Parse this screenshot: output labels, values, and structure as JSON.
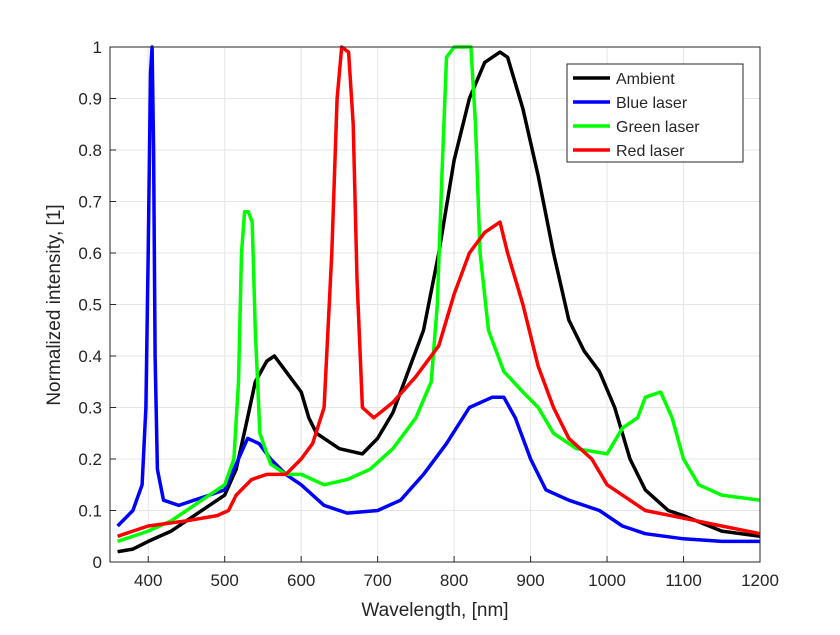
{
  "chart_data": {
    "type": "line",
    "title": "",
    "xlabel": "Wavelength, [nm]",
    "ylabel": "Normalized intensity, [1]",
    "xlim": [
      350,
      1200
    ],
    "ylim": [
      0,
      1
    ],
    "xticks": [
      400,
      500,
      600,
      700,
      800,
      900,
      1000,
      1100,
      1200
    ],
    "yticks": [
      0,
      0.1,
      0.2,
      0.3,
      0.4,
      0.5,
      0.6,
      0.7,
      0.8,
      0.9,
      1
    ],
    "ytick_labels": [
      "0",
      "0.1",
      "0.2",
      "0.3",
      "0.4",
      "0.5",
      "0.6",
      "0.7",
      "0.8",
      "0.9",
      "1"
    ],
    "grid": true,
    "legend_position": "top-right",
    "series": [
      {
        "name": "Ambient",
        "color": "#000000",
        "points": [
          [
            360,
            0.02
          ],
          [
            380,
            0.025
          ],
          [
            400,
            0.04
          ],
          [
            430,
            0.06
          ],
          [
            450,
            0.08
          ],
          [
            480,
            0.11
          ],
          [
            500,
            0.13
          ],
          [
            515,
            0.18
          ],
          [
            530,
            0.28
          ],
          [
            540,
            0.35
          ],
          [
            555,
            0.39
          ],
          [
            565,
            0.4
          ],
          [
            580,
            0.37
          ],
          [
            600,
            0.33
          ],
          [
            610,
            0.28
          ],
          [
            620,
            0.25
          ],
          [
            650,
            0.22
          ],
          [
            680,
            0.21
          ],
          [
            700,
            0.24
          ],
          [
            720,
            0.29
          ],
          [
            740,
            0.37
          ],
          [
            760,
            0.45
          ],
          [
            780,
            0.6
          ],
          [
            800,
            0.78
          ],
          [
            820,
            0.9
          ],
          [
            840,
            0.97
          ],
          [
            860,
            0.99
          ],
          [
            870,
            0.98
          ],
          [
            890,
            0.88
          ],
          [
            910,
            0.75
          ],
          [
            930,
            0.6
          ],
          [
            950,
            0.47
          ],
          [
            970,
            0.41
          ],
          [
            990,
            0.37
          ],
          [
            1010,
            0.3
          ],
          [
            1030,
            0.2
          ],
          [
            1050,
            0.14
          ],
          [
            1080,
            0.1
          ],
          [
            1100,
            0.09
          ],
          [
            1150,
            0.06
          ],
          [
            1200,
            0.05
          ]
        ]
      },
      {
        "name": "Blue laser",
        "color": "#0000ff",
        "points": [
          [
            360,
            0.07
          ],
          [
            380,
            0.1
          ],
          [
            392,
            0.15
          ],
          [
            397,
            0.3
          ],
          [
            400,
            0.6
          ],
          [
            403,
            0.95
          ],
          [
            405,
            1.0
          ],
          [
            407,
            0.8
          ],
          [
            409,
            0.4
          ],
          [
            412,
            0.18
          ],
          [
            420,
            0.12
          ],
          [
            440,
            0.11
          ],
          [
            460,
            0.12
          ],
          [
            480,
            0.13
          ],
          [
            500,
            0.14
          ],
          [
            515,
            0.19
          ],
          [
            530,
            0.24
          ],
          [
            545,
            0.23
          ],
          [
            560,
            0.2
          ],
          [
            580,
            0.17
          ],
          [
            600,
            0.15
          ],
          [
            630,
            0.11
          ],
          [
            660,
            0.095
          ],
          [
            700,
            0.1
          ],
          [
            730,
            0.12
          ],
          [
            760,
            0.17
          ],
          [
            790,
            0.23
          ],
          [
            820,
            0.3
          ],
          [
            850,
            0.32
          ],
          [
            865,
            0.32
          ],
          [
            880,
            0.28
          ],
          [
            900,
            0.2
          ],
          [
            920,
            0.14
          ],
          [
            950,
            0.12
          ],
          [
            990,
            0.1
          ],
          [
            1020,
            0.07
          ],
          [
            1050,
            0.055
          ],
          [
            1100,
            0.045
          ],
          [
            1150,
            0.04
          ],
          [
            1200,
            0.04
          ]
        ]
      },
      {
        "name": "Green laser",
        "color": "#00ff00",
        "points": [
          [
            360,
            0.04
          ],
          [
            400,
            0.06
          ],
          [
            430,
            0.08
          ],
          [
            450,
            0.1
          ],
          [
            480,
            0.13
          ],
          [
            500,
            0.15
          ],
          [
            512,
            0.2
          ],
          [
            518,
            0.35
          ],
          [
            522,
            0.6
          ],
          [
            526,
            0.68
          ],
          [
            531,
            0.68
          ],
          [
            536,
            0.66
          ],
          [
            540,
            0.45
          ],
          [
            546,
            0.25
          ],
          [
            560,
            0.19
          ],
          [
            580,
            0.17
          ],
          [
            600,
            0.17
          ],
          [
            630,
            0.15
          ],
          [
            660,
            0.16
          ],
          [
            690,
            0.18
          ],
          [
            720,
            0.22
          ],
          [
            750,
            0.28
          ],
          [
            770,
            0.35
          ],
          [
            778,
            0.5
          ],
          [
            784,
            0.75
          ],
          [
            790,
            0.98
          ],
          [
            800,
            1.0
          ],
          [
            822,
            1.0
          ],
          [
            828,
            0.85
          ],
          [
            834,
            0.6
          ],
          [
            845,
            0.45
          ],
          [
            865,
            0.37
          ],
          [
            890,
            0.33
          ],
          [
            910,
            0.3
          ],
          [
            930,
            0.25
          ],
          [
            960,
            0.22
          ],
          [
            1000,
            0.21
          ],
          [
            1020,
            0.26
          ],
          [
            1040,
            0.28
          ],
          [
            1050,
            0.32
          ],
          [
            1070,
            0.33
          ],
          [
            1085,
            0.28
          ],
          [
            1100,
            0.2
          ],
          [
            1120,
            0.15
          ],
          [
            1150,
            0.13
          ],
          [
            1200,
            0.12
          ]
        ]
      },
      {
        "name": "Red laser",
        "color": "#ff0000",
        "points": [
          [
            360,
            0.05
          ],
          [
            380,
            0.06
          ],
          [
            400,
            0.07
          ],
          [
            450,
            0.08
          ],
          [
            490,
            0.09
          ],
          [
            505,
            0.1
          ],
          [
            515,
            0.13
          ],
          [
            535,
            0.16
          ],
          [
            555,
            0.17
          ],
          [
            580,
            0.17
          ],
          [
            600,
            0.2
          ],
          [
            615,
            0.23
          ],
          [
            630,
            0.3
          ],
          [
            640,
            0.6
          ],
          [
            647,
            0.9
          ],
          [
            653,
            1.0
          ],
          [
            662,
            0.99
          ],
          [
            668,
            0.85
          ],
          [
            673,
            0.55
          ],
          [
            680,
            0.3
          ],
          [
            695,
            0.28
          ],
          [
            720,
            0.31
          ],
          [
            750,
            0.36
          ],
          [
            780,
            0.42
          ],
          [
            800,
            0.52
          ],
          [
            820,
            0.6
          ],
          [
            840,
            0.64
          ],
          [
            860,
            0.66
          ],
          [
            870,
            0.6
          ],
          [
            890,
            0.5
          ],
          [
            910,
            0.38
          ],
          [
            930,
            0.3
          ],
          [
            950,
            0.24
          ],
          [
            980,
            0.2
          ],
          [
            1000,
            0.15
          ],
          [
            1020,
            0.13
          ],
          [
            1050,
            0.1
          ],
          [
            1100,
            0.085
          ],
          [
            1150,
            0.07
          ],
          [
            1200,
            0.055
          ]
        ]
      }
    ]
  }
}
